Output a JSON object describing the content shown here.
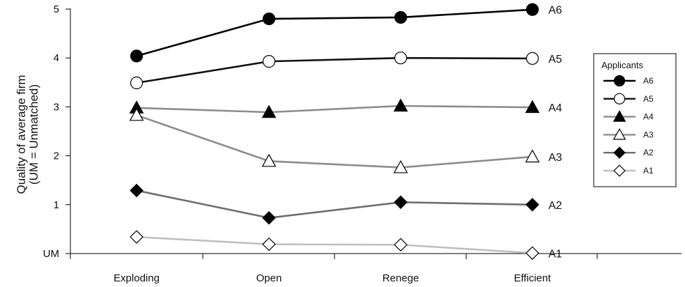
{
  "chart_data": {
    "type": "line",
    "categories": [
      "Exploding",
      "Open",
      "Renege",
      "Efficient"
    ],
    "ylabel_line1": "Quality of average firm",
    "ylabel_line2": "(UM = Unmatched)",
    "ylim": [
      0,
      5
    ],
    "y_ticks": [
      "UM",
      "1",
      "2",
      "3",
      "4",
      "5"
    ],
    "grid": false,
    "legend": {
      "title": "Applicants",
      "position": "right"
    },
    "series": [
      {
        "name": "A6",
        "values": [
          4.04,
          4.8,
          4.83,
          4.99
        ],
        "marker": "circle",
        "filled": true,
        "color": "#000000"
      },
      {
        "name": "A5",
        "values": [
          3.49,
          3.93,
          4.0,
          3.99
        ],
        "marker": "circle",
        "filled": false,
        "color": "#111111"
      },
      {
        "name": "A4",
        "values": [
          2.98,
          2.89,
          3.02,
          2.99
        ],
        "marker": "triangle",
        "filled": true,
        "color": "#8c8c8c"
      },
      {
        "name": "A3",
        "values": [
          2.83,
          1.89,
          1.76,
          1.98
        ],
        "marker": "triangle",
        "filled": false,
        "color": "#8c8c8c"
      },
      {
        "name": "A2",
        "values": [
          1.29,
          0.73,
          1.05,
          1.0
        ],
        "marker": "diamond",
        "filled": true,
        "color": "#6e6e6e"
      },
      {
        "name": "A1",
        "values": [
          0.34,
          0.19,
          0.18,
          0.01
        ],
        "marker": "diamond",
        "filled": false,
        "color": "#bfbfbf"
      }
    ]
  }
}
